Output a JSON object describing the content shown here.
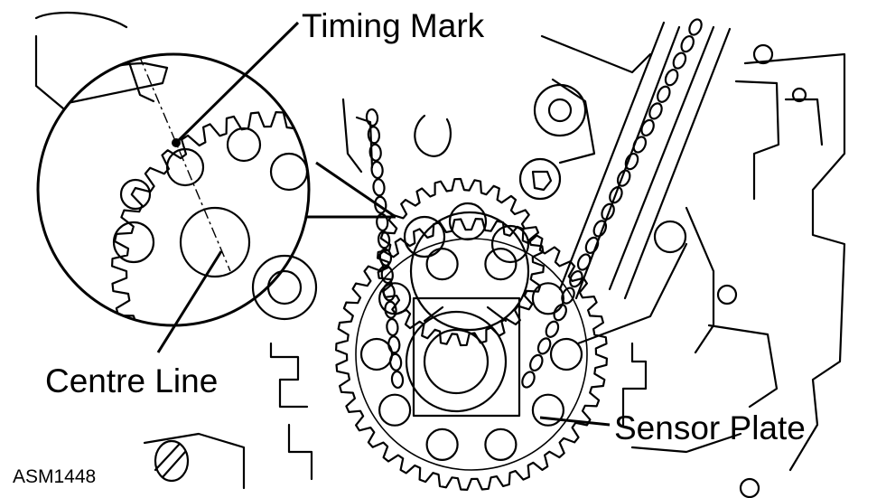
{
  "labels": {
    "timing_mark": "Timing Mark",
    "centre_line": "Centre Line",
    "sensor_plate": "Sensor Plate",
    "figure_code": "ASM1448"
  },
  "colors": {
    "line": "#000000",
    "background": "#ffffff"
  }
}
